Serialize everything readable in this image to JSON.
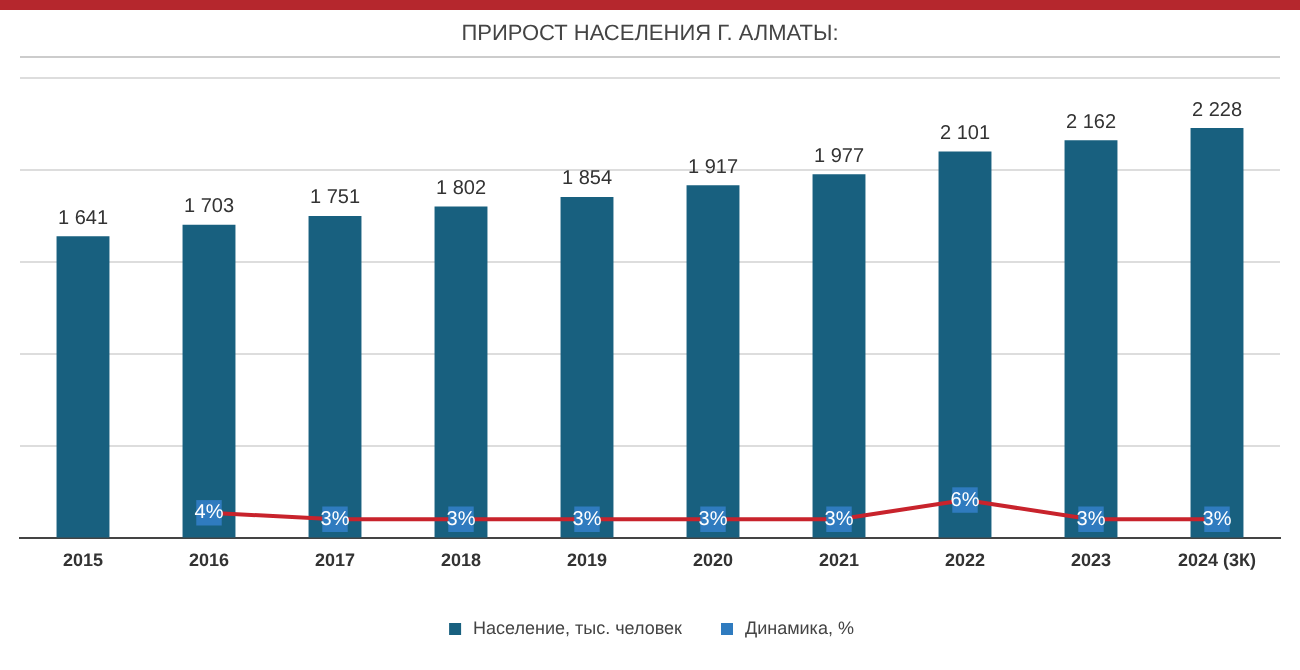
{
  "chart_data": {
    "type": "bar",
    "title": "ПРИРОСТ НАСЕЛЕНИЯ Г. АЛМАТЫ:",
    "categories": [
      "2015",
      "2016",
      "2017",
      "2018",
      "2019",
      "2020",
      "2021",
      "2022",
      "2023",
      "2024 (3К)"
    ],
    "series": [
      {
        "name": "Население, тыс. человек",
        "color": "#18607f",
        "values": [
          1641,
          1703,
          1751,
          1802,
          1854,
          1917,
          1977,
          2101,
          2162,
          2228
        ],
        "value_labels": [
          "1 641",
          "1 703",
          "1 751",
          "1 802",
          "1 854",
          "1 917",
          "1 977",
          "2 101",
          "2 162",
          "2 228"
        ]
      },
      {
        "name": "Динамика, %",
        "type": "line",
        "axis": "y2",
        "marker": "square",
        "color": "#c8232c",
        "values": [
          null,
          4,
          3,
          3,
          3,
          3,
          3,
          6,
          3,
          3
        ],
        "value_labels": [
          null,
          "4%",
          "3%",
          "3%",
          "3%",
          "3%",
          "3%",
          "6%",
          "3%",
          "3%"
        ]
      }
    ],
    "ylim": [
      0,
      2500
    ],
    "yticks": [
      {
        "value": 0,
        "label": null
      },
      {
        "value": 500,
        "label": null
      },
      {
        "value": 1000,
        "label": null
      },
      {
        "value": 1500,
        "label": null
      },
      {
        "value": 2000,
        "label": null
      },
      {
        "value": 2500,
        "label": null
      }
    ],
    "y2lim": [
      0,
      72
    ],
    "grid": "y",
    "legend": "bottom",
    "tick_labels": "x",
    "line_style": "solid"
  }
}
